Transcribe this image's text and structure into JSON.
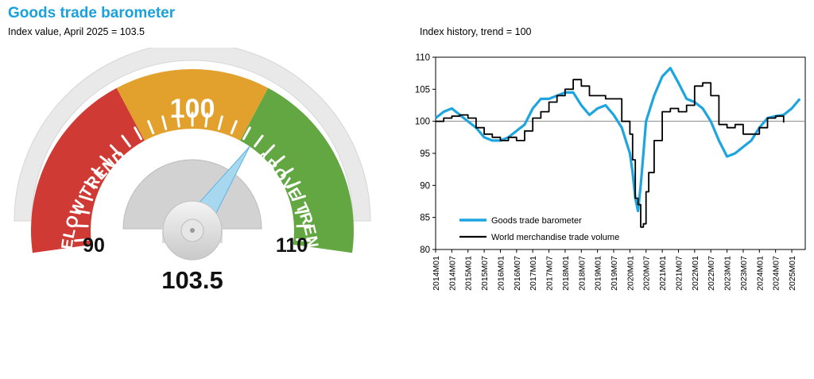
{
  "title": "Goods trade barometer",
  "gauge": {
    "subtitle": "Index value, April 2025 = 103.5",
    "value": 103.5,
    "value_label": "103.5",
    "min": 90,
    "max": 110,
    "min_label": "90",
    "max_label": "110",
    "center_label": "100",
    "below_label": "BELOW TREND",
    "above_label": "ABOVE TREND",
    "colors": {
      "below": "#cf3b34",
      "mid": "#e2a12d",
      "above": "#62a742",
      "needle": "#a8d8f0",
      "rim": "#e8e8e8"
    }
  },
  "chart_data": {
    "type": "line",
    "title": "Index history, trend = 100",
    "ylim": [
      80,
      110
    ],
    "yticks": [
      80,
      85,
      90,
      95,
      100,
      105,
      110
    ],
    "reference_line": 100,
    "xlim": [
      "2014M01",
      "2025M06"
    ],
    "x_tick_labels": [
      "2014M01",
      "2014M07",
      "2015M01",
      "2015M07",
      "2016M01",
      "2016M07",
      "2017M01",
      "2017M07",
      "2018M01",
      "2018M07",
      "2019M01",
      "2019M07",
      "2020M01",
      "2020M07",
      "2021M01",
      "2021M07",
      "2022M01",
      "2022M07",
      "2023M01",
      "2023M07",
      "2024M01",
      "2024M07",
      "2025M01"
    ],
    "legend_position": "bottom-left",
    "series": [
      {
        "name": "Goods trade barometer",
        "color": "#1ea5e0",
        "x": [
          "2014M01",
          "2014M04",
          "2014M07",
          "2014M10",
          "2015M01",
          "2015M04",
          "2015M07",
          "2015M10",
          "2016M01",
          "2016M04",
          "2016M07",
          "2016M10",
          "2017M01",
          "2017M04",
          "2017M07",
          "2017M10",
          "2018M01",
          "2018M04",
          "2018M07",
          "2018M10",
          "2019M01",
          "2019M04",
          "2019M07",
          "2019M10",
          "2020M01",
          "2020M02",
          "2020M03",
          "2020M04",
          "2020M05",
          "2020M06",
          "2020M07",
          "2020M10",
          "2021M01",
          "2021M04",
          "2021M07",
          "2021M10",
          "2022M01",
          "2022M04",
          "2022M07",
          "2022M10",
          "2023M01",
          "2023M04",
          "2023M07",
          "2023M10",
          "2024M01",
          "2024M04",
          "2024M07",
          "2024M10",
          "2025M01",
          "2025M04"
        ],
        "y": [
          100.5,
          101.5,
          102.0,
          101.0,
          100.0,
          99.0,
          97.5,
          97.0,
          97.0,
          97.5,
          98.5,
          99.5,
          102.0,
          103.5,
          103.5,
          104.0,
          104.5,
          104.5,
          102.5,
          101.0,
          102.0,
          102.5,
          101.0,
          99.0,
          95.0,
          92.0,
          88.0,
          86.0,
          90.0,
          95.0,
          100.0,
          104.0,
          107.0,
          108.3,
          106.0,
          103.5,
          103.0,
          102.0,
          100.0,
          97.0,
          94.5,
          95.0,
          96.0,
          97.0,
          99.0,
          100.5,
          100.8,
          101.0,
          102.0,
          103.5
        ]
      },
      {
        "name": "World merchandise trade volume",
        "color": "#000000",
        "x": [
          "2014M01",
          "2014M04",
          "2014M07",
          "2014M10",
          "2015M01",
          "2015M04",
          "2015M07",
          "2015M10",
          "2016M01",
          "2016M04",
          "2016M07",
          "2016M10",
          "2017M01",
          "2017M04",
          "2017M07",
          "2017M10",
          "2018M01",
          "2018M04",
          "2018M07",
          "2018M10",
          "2019M01",
          "2019M04",
          "2019M07",
          "2019M10",
          "2020M01",
          "2020M02",
          "2020M03",
          "2020M04",
          "2020M05",
          "2020M06",
          "2020M07",
          "2020M08",
          "2020M10",
          "2021M01",
          "2021M04",
          "2021M07",
          "2021M10",
          "2022M01",
          "2022M04",
          "2022M07",
          "2022M10",
          "2023M01",
          "2023M04",
          "2023M07",
          "2023M10",
          "2024M01",
          "2024M04",
          "2024M07",
          "2024M10"
        ],
        "y": [
          100.0,
          100.5,
          100.8,
          101.0,
          100.5,
          99.0,
          98.0,
          97.5,
          97.0,
          97.5,
          97.0,
          98.5,
          100.5,
          101.5,
          103.0,
          104.0,
          105.0,
          106.5,
          105.5,
          104.0,
          104.0,
          103.5,
          103.5,
          100.0,
          98.0,
          94.0,
          88.0,
          87.0,
          83.5,
          84.0,
          89.0,
          92.0,
          97.0,
          101.5,
          102.0,
          101.5,
          102.5,
          105.5,
          106.0,
          104.0,
          99.5,
          99.0,
          99.5,
          98.0,
          98.0,
          99.0,
          100.5,
          100.8,
          99.8
        ]
      }
    ]
  }
}
